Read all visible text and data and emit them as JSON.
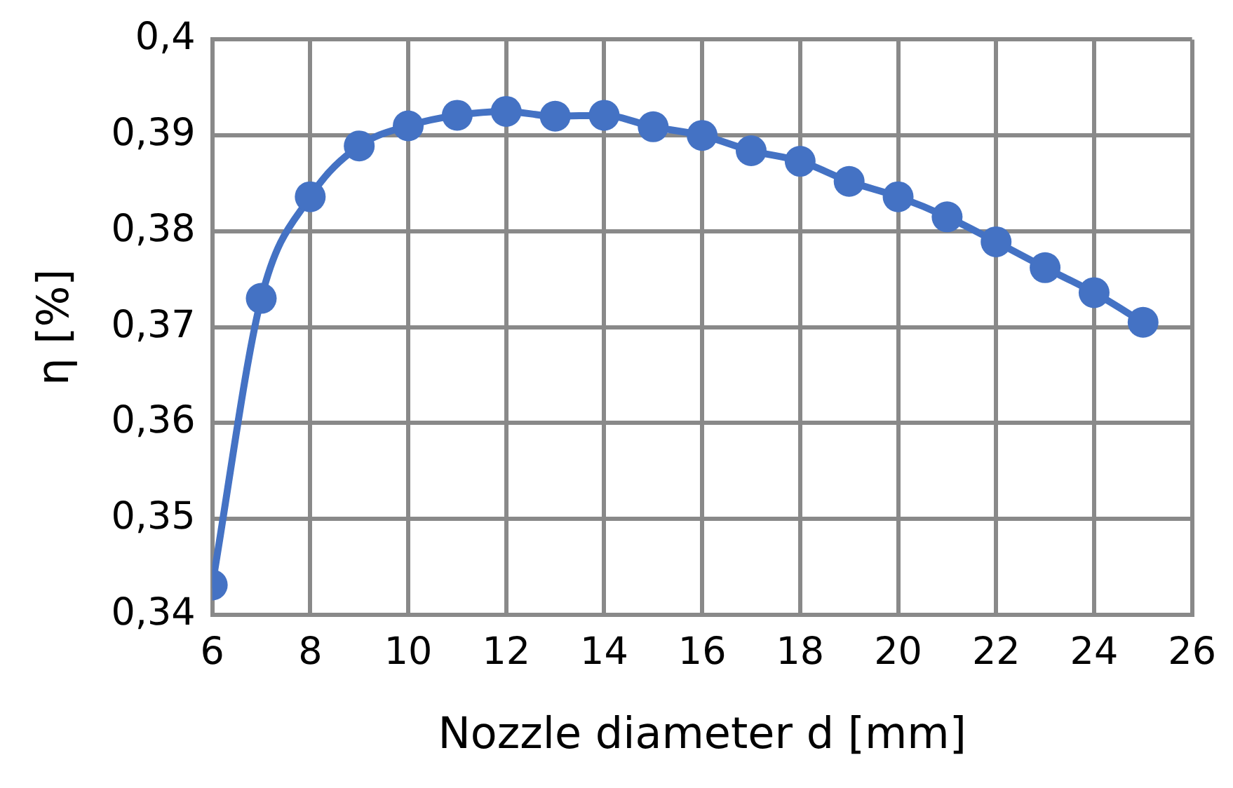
{
  "chart_data": {
    "type": "line",
    "xlabel": "Nozzle diameter d [mm]",
    "ylabel": "η [%]",
    "x": [
      6,
      7,
      8,
      9,
      10,
      11,
      12,
      13,
      14,
      15,
      16,
      17,
      18,
      19,
      20,
      21,
      22,
      23,
      24,
      25
    ],
    "series": [
      {
        "color": "#4472c4",
        "values": [
          0.3431,
          0.373,
          0.3836,
          0.3889,
          0.391,
          0.3921,
          0.3925,
          0.392,
          0.3921,
          0.3909,
          0.39,
          0.3884,
          0.3873,
          0.3852,
          0.3836,
          0.3815,
          0.3789,
          0.3762,
          0.3736,
          0.3705
        ]
      }
    ],
    "xlim": [
      6,
      26
    ],
    "xticks": [
      6,
      8,
      10,
      12,
      14,
      16,
      18,
      20,
      22,
      24,
      26
    ],
    "ylim": [
      0.34,
      0.4
    ],
    "yticks": [
      {
        "value": 0.34,
        "label": "0,34"
      },
      {
        "value": 0.35,
        "label": "0,35"
      },
      {
        "value": 0.36,
        "label": "0,36"
      },
      {
        "value": 0.37,
        "label": "0,37"
      },
      {
        "value": 0.38,
        "label": "0,38"
      },
      {
        "value": 0.39,
        "label": "0,39"
      },
      {
        "value": 0.4,
        "label": "0,4"
      }
    ],
    "grid": true,
    "legend": false,
    "marker": "circle",
    "line_style": "solid"
  }
}
